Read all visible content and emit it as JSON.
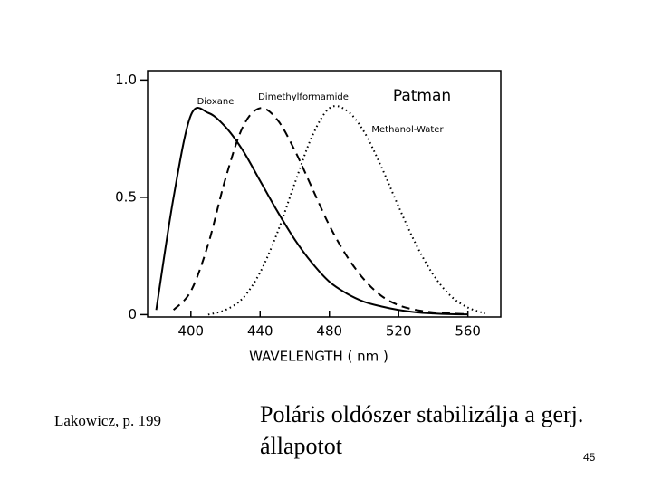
{
  "chart_data": {
    "type": "line",
    "title": "Patman",
    "xlabel": "WAVELENGTH ( nm )",
    "x": [
      380,
      390,
      400,
      410,
      420,
      430,
      440,
      450,
      460,
      470,
      480,
      490,
      500,
      510,
      520,
      530,
      540,
      550,
      560,
      570
    ],
    "series": [
      {
        "name": "Dioxane",
        "color": "#000000",
        "dash": "solid",
        "values": [
          0.02,
          0.5,
          0.85,
          0.86,
          0.8,
          0.7,
          0.57,
          0.44,
          0.32,
          0.22,
          0.14,
          0.09,
          0.055,
          0.035,
          0.02,
          0.01,
          0.005,
          0.002,
          0.001,
          null
        ]
      },
      {
        "name": "Dimethylformamide",
        "color": "#000000",
        "dash": "dashed",
        "values": [
          null,
          0.02,
          0.1,
          0.3,
          0.58,
          0.8,
          0.88,
          0.83,
          0.7,
          0.54,
          0.38,
          0.25,
          0.15,
          0.08,
          0.04,
          0.02,
          0.01,
          0.005,
          0.002,
          null
        ]
      },
      {
        "name": "Methanol-Water",
        "color": "#000000",
        "dash": "dotted",
        "values": [
          null,
          null,
          null,
          0,
          0.02,
          0.07,
          0.18,
          0.35,
          0.56,
          0.76,
          0.88,
          0.87,
          0.78,
          0.63,
          0.46,
          0.3,
          0.17,
          0.08,
          0.03,
          0.005
        ]
      }
    ],
    "xlim": [
      375,
      579
    ],
    "ylim": [
      -0.01,
      1.04
    ],
    "xticks": [
      400,
      440,
      480,
      520,
      560
    ],
    "yticks": [
      0,
      0.5,
      {
        "value": 1,
        "label": "1.0"
      }
    ],
    "grid": false
  },
  "slide": {
    "source": "Lakowicz, p. 199",
    "text": "Poláris oldószer stabilizálja a gerj. állapotot",
    "page_number": "45"
  }
}
